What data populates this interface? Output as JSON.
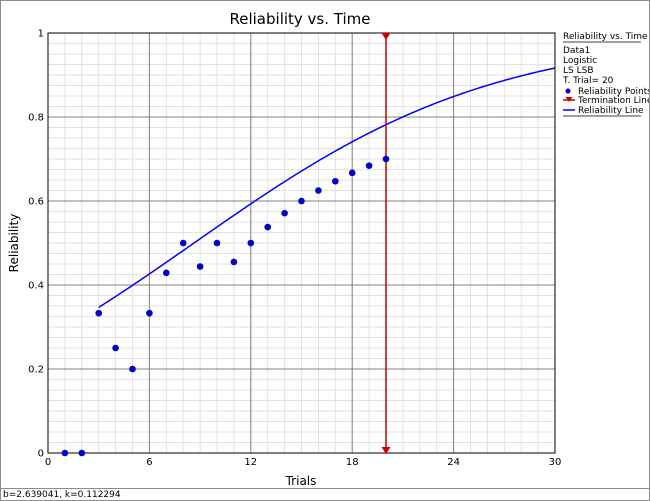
{
  "chart_data": {
    "type": "line",
    "title": "Reliability vs. Time",
    "xlabel": "Trials",
    "ylabel": "Reliability",
    "xlim": [
      0,
      30
    ],
    "ylim": [
      0,
      1
    ],
    "x_ticks": [
      0,
      6,
      12,
      18,
      24,
      30
    ],
    "y_ticks": [
      0,
      0.2,
      0.4,
      0.6,
      0.8,
      1
    ],
    "x_tick_labels": [
      "0",
      "6",
      "12",
      "18",
      "24",
      "30"
    ],
    "y_tick_labels": [
      "0",
      "0.2",
      "0.4",
      "0.6",
      "0.8",
      "1"
    ],
    "grid": true,
    "colors": {
      "points": "#0000cc",
      "line": "#0000ff",
      "termination": "#cc0000",
      "grid_major": "#808080",
      "grid_minor": "#d8d8d8"
    },
    "points": {
      "name": "Reliability Points",
      "x": [
        1,
        2,
        3,
        4,
        5,
        6,
        7,
        8,
        9,
        10,
        11,
        12,
        13,
        14,
        15,
        16,
        17,
        18,
        19,
        20
      ],
      "y": [
        0,
        0,
        0.333,
        0.25,
        0.2,
        0.333,
        0.429,
        0.5,
        0.444,
        0.5,
        0.455,
        0.5,
        0.538,
        0.571,
        0.6,
        0.625,
        0.647,
        0.667,
        0.684,
        0.7
      ]
    },
    "reliability_line": {
      "name": "Reliability Line",
      "b": 2.639041,
      "k": 0.112294,
      "x_start": 3,
      "x_end": 30
    },
    "termination_line": {
      "name": "Termination Line",
      "x": 20
    },
    "legend": {
      "title": "Reliability vs. Time",
      "info": [
        "Data1",
        "Logistic",
        "LS LSB",
        "T. Trial= 20"
      ],
      "entries": [
        "Reliability Points",
        "Termination Line",
        "Reliability Line"
      ],
      "placement": "right"
    }
  },
  "status_bar": {
    "text": "b=2.639041, k=0.112294"
  }
}
